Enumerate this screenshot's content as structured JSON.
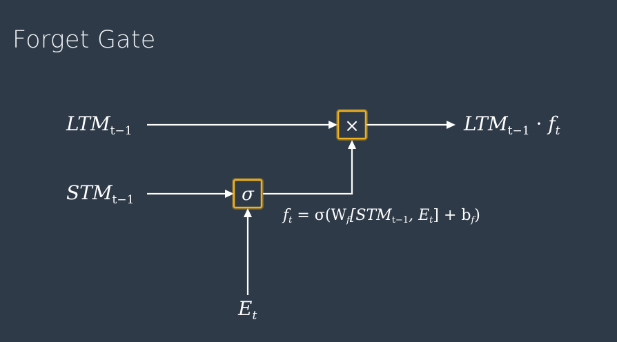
{
  "slide": {
    "title": "Forget Gate"
  },
  "diagram": {
    "inputs": {
      "ltm": {
        "main": "LTM",
        "sub": "t−1"
      },
      "stm": {
        "main": "STM",
        "sub": "t−1"
      },
      "event": {
        "main": "E",
        "sub": "t"
      }
    },
    "output": {
      "main": "LTM",
      "sub": "t−1",
      "dot": "·",
      "f": "f",
      "f_sub": "t"
    },
    "nodes": {
      "multiply": {
        "symbol": "×",
        "color": "#f0b21c"
      },
      "sigmoid": {
        "symbol": "σ",
        "color": "#f0b21c"
      }
    },
    "formula": {
      "lhs": "f",
      "lhs_sub": "t",
      "eq": " = σ(W",
      "w_sub": "f",
      "bracket_open": "[STM",
      "stm_sub": "t−1",
      "mid": ", E",
      "e_sub": "t",
      "bracket_close": "] + b",
      "b_sub": "f",
      "paren_close": ")"
    }
  }
}
